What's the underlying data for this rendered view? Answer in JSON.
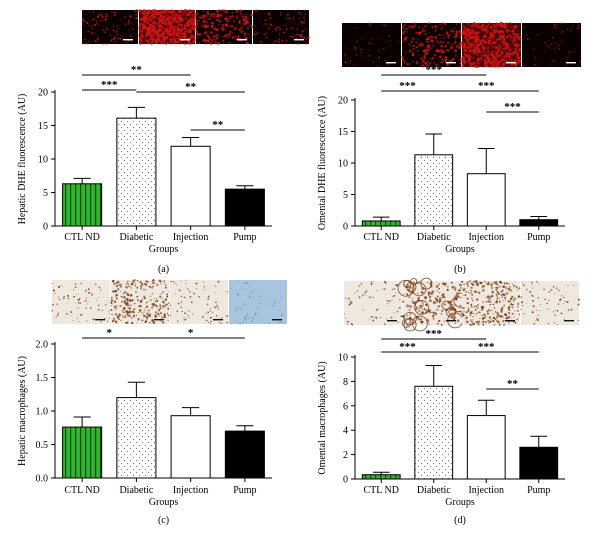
{
  "figure": {
    "panel_labels": [
      "(a)",
      "(b)",
      "(c)",
      "(d)"
    ]
  },
  "colors": {
    "ctl_nd": "#2fb52f",
    "ctl_stripe": "#0b4a0b",
    "diabetic": "#ffffff",
    "injection": "#ffffff",
    "pump": "#000000",
    "dhe_background": "#0a0000",
    "dhe_signal": "#d11414",
    "ihc_background": "#efe8df",
    "ihc_brown": "#7a3f1c",
    "ihc_blue": "#a9c4dd"
  },
  "chart_data": [
    {
      "type": "bar",
      "panel": "(a)",
      "categories": [
        "CTL ND",
        "Diabetic",
        "Injection",
        "Pump"
      ],
      "values": [
        6.3,
        16.1,
        11.9,
        5.5
      ],
      "errors": [
        0.8,
        1.6,
        1.3,
        0.5
      ],
      "xlabel": "Groups",
      "ylabel": "Hepatic DHE fluorescence (AU)",
      "ylim": [
        0,
        20
      ],
      "yticks": [
        "0",
        "5",
        "10",
        "15",
        "20"
      ],
      "images": [
        "dhe-weak",
        "dhe-strong",
        "dhe-medium",
        "dhe-weak"
      ],
      "significance": [
        {
          "from": 0,
          "to": 2,
          "label": "**"
        },
        {
          "from": 0,
          "to": 1,
          "label": "***"
        },
        {
          "from": 1,
          "to": 3,
          "label": "**"
        },
        {
          "from": 2,
          "to": 3,
          "label": "**"
        }
      ]
    },
    {
      "type": "bar",
      "panel": "(b)",
      "categories": [
        "CTL ND",
        "Diabetic",
        "Injection",
        "Pump"
      ],
      "values": [
        0.8,
        11.3,
        8.3,
        1.0
      ],
      "errors": [
        0.6,
        3.3,
        4.0,
        0.5
      ],
      "xlabel": "Groups",
      "ylabel": "Omental DHE fluorescence (AU)",
      "ylim": [
        0,
        20
      ],
      "yticks": [
        "0",
        "5",
        "10",
        "15",
        "20"
      ],
      "images": [
        "dhe-faint",
        "dhe-medium",
        "dhe-strong",
        "dhe-faint"
      ],
      "significance": [
        {
          "from": 0,
          "to": 2,
          "label": "***"
        },
        {
          "from": 0,
          "to": 1,
          "label": "***"
        },
        {
          "from": 1,
          "to": 3,
          "label": "***"
        },
        {
          "from": 2,
          "to": 3,
          "label": "***"
        }
      ]
    },
    {
      "type": "bar",
      "panel": "(c)",
      "categories": [
        "CTL ND",
        "Diabetic",
        "Injection",
        "Pump"
      ],
      "values": [
        0.76,
        1.2,
        0.93,
        0.7
      ],
      "errors": [
        0.15,
        0.23,
        0.12,
        0.08
      ],
      "xlabel": "Groups",
      "ylabel": "Hepatic macrophages (AU)",
      "ylim": [
        0,
        2.0
      ],
      "yticks": [
        "0.0",
        "0.5",
        "1.0",
        "1.5",
        "2.0"
      ],
      "images": [
        "ihc-sparse",
        "ihc-dense",
        "ihc-sparse",
        "ihc-blue"
      ],
      "significance": [
        {
          "from": 0,
          "to": 1,
          "label": "*"
        },
        {
          "from": 1,
          "to": 3,
          "label": "*"
        }
      ]
    },
    {
      "type": "bar",
      "panel": "(d)",
      "categories": [
        "CTL ND",
        "Diabetic",
        "Injection",
        "Pump"
      ],
      "values": [
        0.35,
        7.6,
        5.2,
        2.6
      ],
      "errors": [
        0.2,
        1.7,
        1.25,
        0.9
      ],
      "xlabel": "Groups",
      "ylabel": "Omental macrophages (AU)",
      "ylim": [
        0,
        10
      ],
      "yticks": [
        "0",
        "2",
        "4",
        "6",
        "8",
        "10"
      ],
      "images": [
        "ihc-sparse",
        "ihc-network",
        "ihc-dense",
        "ihc-sparse"
      ],
      "significance": [
        {
          "from": 0,
          "to": 2,
          "label": "***"
        },
        {
          "from": 0,
          "to": 1,
          "label": "***"
        },
        {
          "from": 1,
          "to": 3,
          "label": "***"
        },
        {
          "from": 2,
          "to": 3,
          "label": "**"
        }
      ]
    }
  ]
}
